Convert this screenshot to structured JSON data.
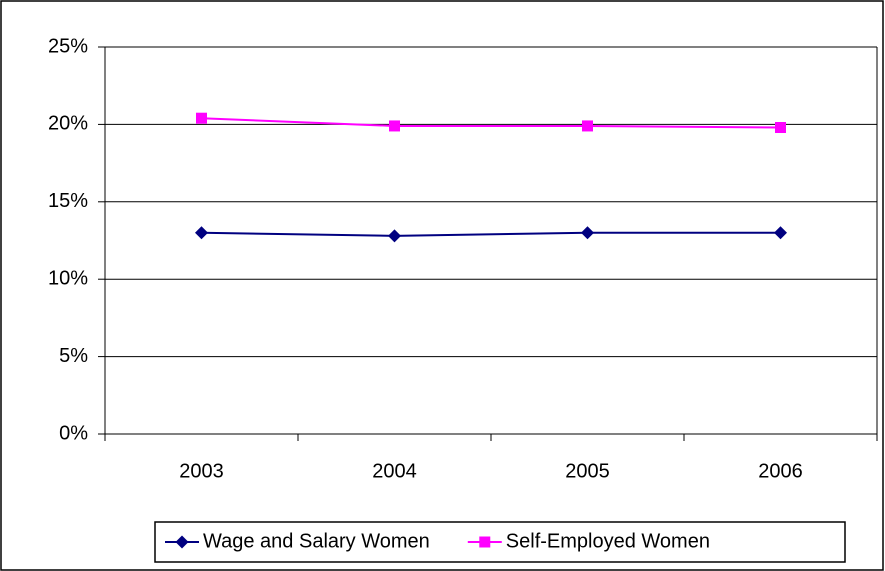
{
  "chart_data": {
    "type": "line",
    "categories": [
      "2003",
      "2004",
      "2005",
      "2006"
    ],
    "series": [
      {
        "name": "Wage and Salary Women",
        "color": "#000080",
        "marker": "diamond",
        "values": [
          13.0,
          12.8,
          13.0,
          13.0
        ]
      },
      {
        "name": "Self-Employed Women",
        "color": "#ff00ff",
        "marker": "square",
        "values": [
          20.4,
          19.9,
          19.9,
          19.8
        ]
      }
    ],
    "ylim": [
      0,
      25
    ],
    "yticks": [
      {
        "value": 0,
        "label": "0%"
      },
      {
        "value": 5,
        "label": "5%"
      },
      {
        "value": 10,
        "label": "10%"
      },
      {
        "value": 15,
        "label": "15%"
      },
      {
        "value": 20,
        "label": "20%"
      },
      {
        "value": 25,
        "label": "25%"
      }
    ],
    "grid": true,
    "legend": "bottom"
  }
}
